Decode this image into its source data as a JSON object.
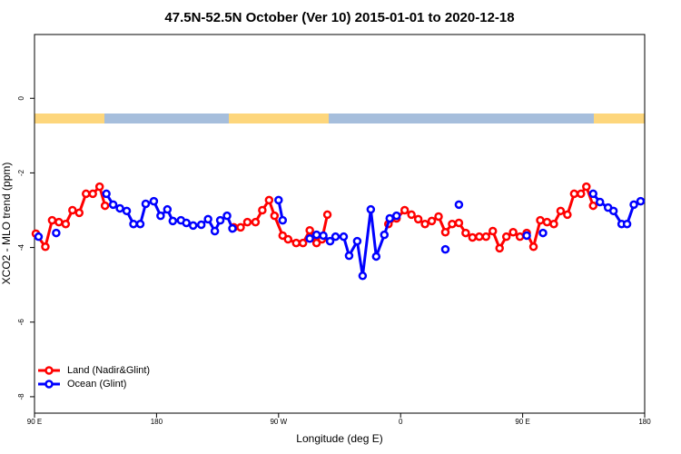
{
  "chart_data": {
    "type": "line",
    "title": "47.5N-52.5N October (Ver 10)   2015-01-01 to 2020-12-18",
    "xlabel": "Longitude (deg E)",
    "ylabel": "XCO2 - MLO trend (ppm)",
    "xlim": [
      90,
      540
    ],
    "ylim": [
      -8.44,
      1.71
    ],
    "xticks": [
      {
        "value": 90,
        "label": "90 E"
      },
      180,
      {
        "value": 270,
        "label": "90 W"
      },
      {
        "value": 360,
        "label": "0"
      },
      {
        "value": 450,
        "label": "90 E"
      },
      {
        "value": 540,
        "label": "180"
      }
    ],
    "yticks": [
      0,
      -2,
      -4,
      -6,
      -8
    ],
    "legend": "bottomleft",
    "series": [
      {
        "name": "Land (Nadir&Glint)",
        "color": "#ff0000",
        "x": [
          91,
          98,
          103,
          108,
          113,
          118,
          123,
          128,
          133,
          138,
          142,
          null,
          237,
          242,
          247,
          253,
          258,
          263,
          267,
          273,
          277,
          283,
          288,
          293,
          298,
          302,
          306,
          null,
          351,
          357,
          363,
          368,
          373,
          378,
          383,
          388,
          393,
          398,
          403,
          408,
          413,
          418,
          423,
          428,
          433,
          438,
          443,
          448,
          453,
          458,
          463,
          468,
          473,
          478,
          483,
          488,
          493,
          497,
          502
        ],
        "values": [
          -3.63,
          -3.98,
          -3.27,
          -3.32,
          -3.37,
          -3.0,
          -3.07,
          -2.56,
          -2.56,
          -2.37,
          -2.88,
          null,
          -3.46,
          -3.46,
          -3.32,
          -3.32,
          -3.0,
          -2.73,
          -3.15,
          -3.68,
          -3.78,
          -3.88,
          -3.88,
          -3.54,
          -3.88,
          -3.78,
          -3.12,
          null,
          -3.37,
          -3.22,
          -3.0,
          -3.12,
          -3.24,
          -3.37,
          -3.29,
          -3.17,
          -3.59,
          -3.37,
          -3.34,
          -3.61,
          -3.73,
          -3.71,
          -3.71,
          -3.56,
          -4.02,
          -3.71,
          -3.59,
          -3.71,
          -3.61,
          -3.98,
          -3.27,
          -3.32,
          -3.37,
          -3.02,
          -3.12,
          -2.56,
          -2.56,
          -2.37,
          -2.88
        ]
      },
      {
        "name": "Ocean (Glint)",
        "color": "#0000ff",
        "x": [
          93,
          null,
          106,
          null,
          143,
          148,
          153,
          158,
          163,
          168,
          172,
          178,
          183,
          188,
          192,
          198,
          202,
          207,
          213,
          218,
          223,
          227,
          232,
          236,
          null,
          270,
          273,
          null,
          293,
          298,
          303,
          308,
          312,
          318,
          322,
          328,
          332,
          338,
          342,
          348,
          352,
          357,
          null,
          393,
          null,
          403,
          null,
          453,
          null,
          465,
          null,
          502,
          507,
          513,
          517,
          523,
          527,
          532,
          537
        ],
        "values": [
          -3.71,
          null,
          -3.61,
          null,
          -2.56,
          -2.85,
          -2.95,
          -3.02,
          -3.37,
          -3.37,
          -2.83,
          -2.76,
          -3.15,
          -2.98,
          -3.29,
          -3.27,
          -3.34,
          -3.41,
          -3.39,
          -3.24,
          -3.56,
          -3.27,
          -3.15,
          -3.49,
          null,
          -2.73,
          -3.27,
          null,
          -3.76,
          -3.66,
          -3.68,
          -3.83,
          -3.71,
          -3.71,
          -4.22,
          -3.83,
          -4.76,
          -2.98,
          -4.24,
          -3.66,
          -3.22,
          -3.15,
          null,
          -4.05,
          null,
          -2.85,
          null,
          -3.68,
          null,
          -3.61,
          null,
          -2.56,
          -2.78,
          -2.93,
          -3.02,
          -3.37,
          -3.37,
          -2.85,
          -2.76
        ]
      }
    ]
  }
}
